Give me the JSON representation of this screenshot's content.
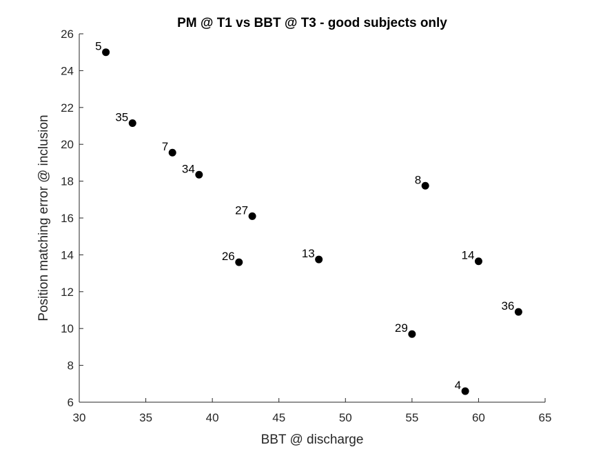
{
  "chart_data": {
    "type": "scatter",
    "title": "PM @ T1 vs BBT @ T3 - good subjects only",
    "xlabel": "BBT @ discharge",
    "ylabel": "Position matching error @ inclusion",
    "xlim": [
      30,
      65
    ],
    "ylim": [
      6,
      26
    ],
    "xticks": [
      30,
      35,
      40,
      45,
      50,
      55,
      60,
      65
    ],
    "yticks": [
      6,
      8,
      10,
      12,
      14,
      16,
      18,
      20,
      22,
      24,
      26
    ],
    "grid": false,
    "legend": "none",
    "marker_color": "#000000",
    "points": [
      {
        "label": "5",
        "x": 32,
        "y": 25.0
      },
      {
        "label": "35",
        "x": 34,
        "y": 21.15
      },
      {
        "label": "7",
        "x": 37,
        "y": 19.55
      },
      {
        "label": "34",
        "x": 39,
        "y": 18.35
      },
      {
        "label": "27",
        "x": 43,
        "y": 16.1
      },
      {
        "label": "26",
        "x": 42,
        "y": 13.6
      },
      {
        "label": "13",
        "x": 48,
        "y": 13.75
      },
      {
        "label": "8",
        "x": 56,
        "y": 17.75
      },
      {
        "label": "14",
        "x": 60,
        "y": 13.65
      },
      {
        "label": "36",
        "x": 63,
        "y": 10.9
      },
      {
        "label": "29",
        "x": 55,
        "y": 9.7
      },
      {
        "label": "4",
        "x": 59,
        "y": 6.6
      }
    ]
  }
}
